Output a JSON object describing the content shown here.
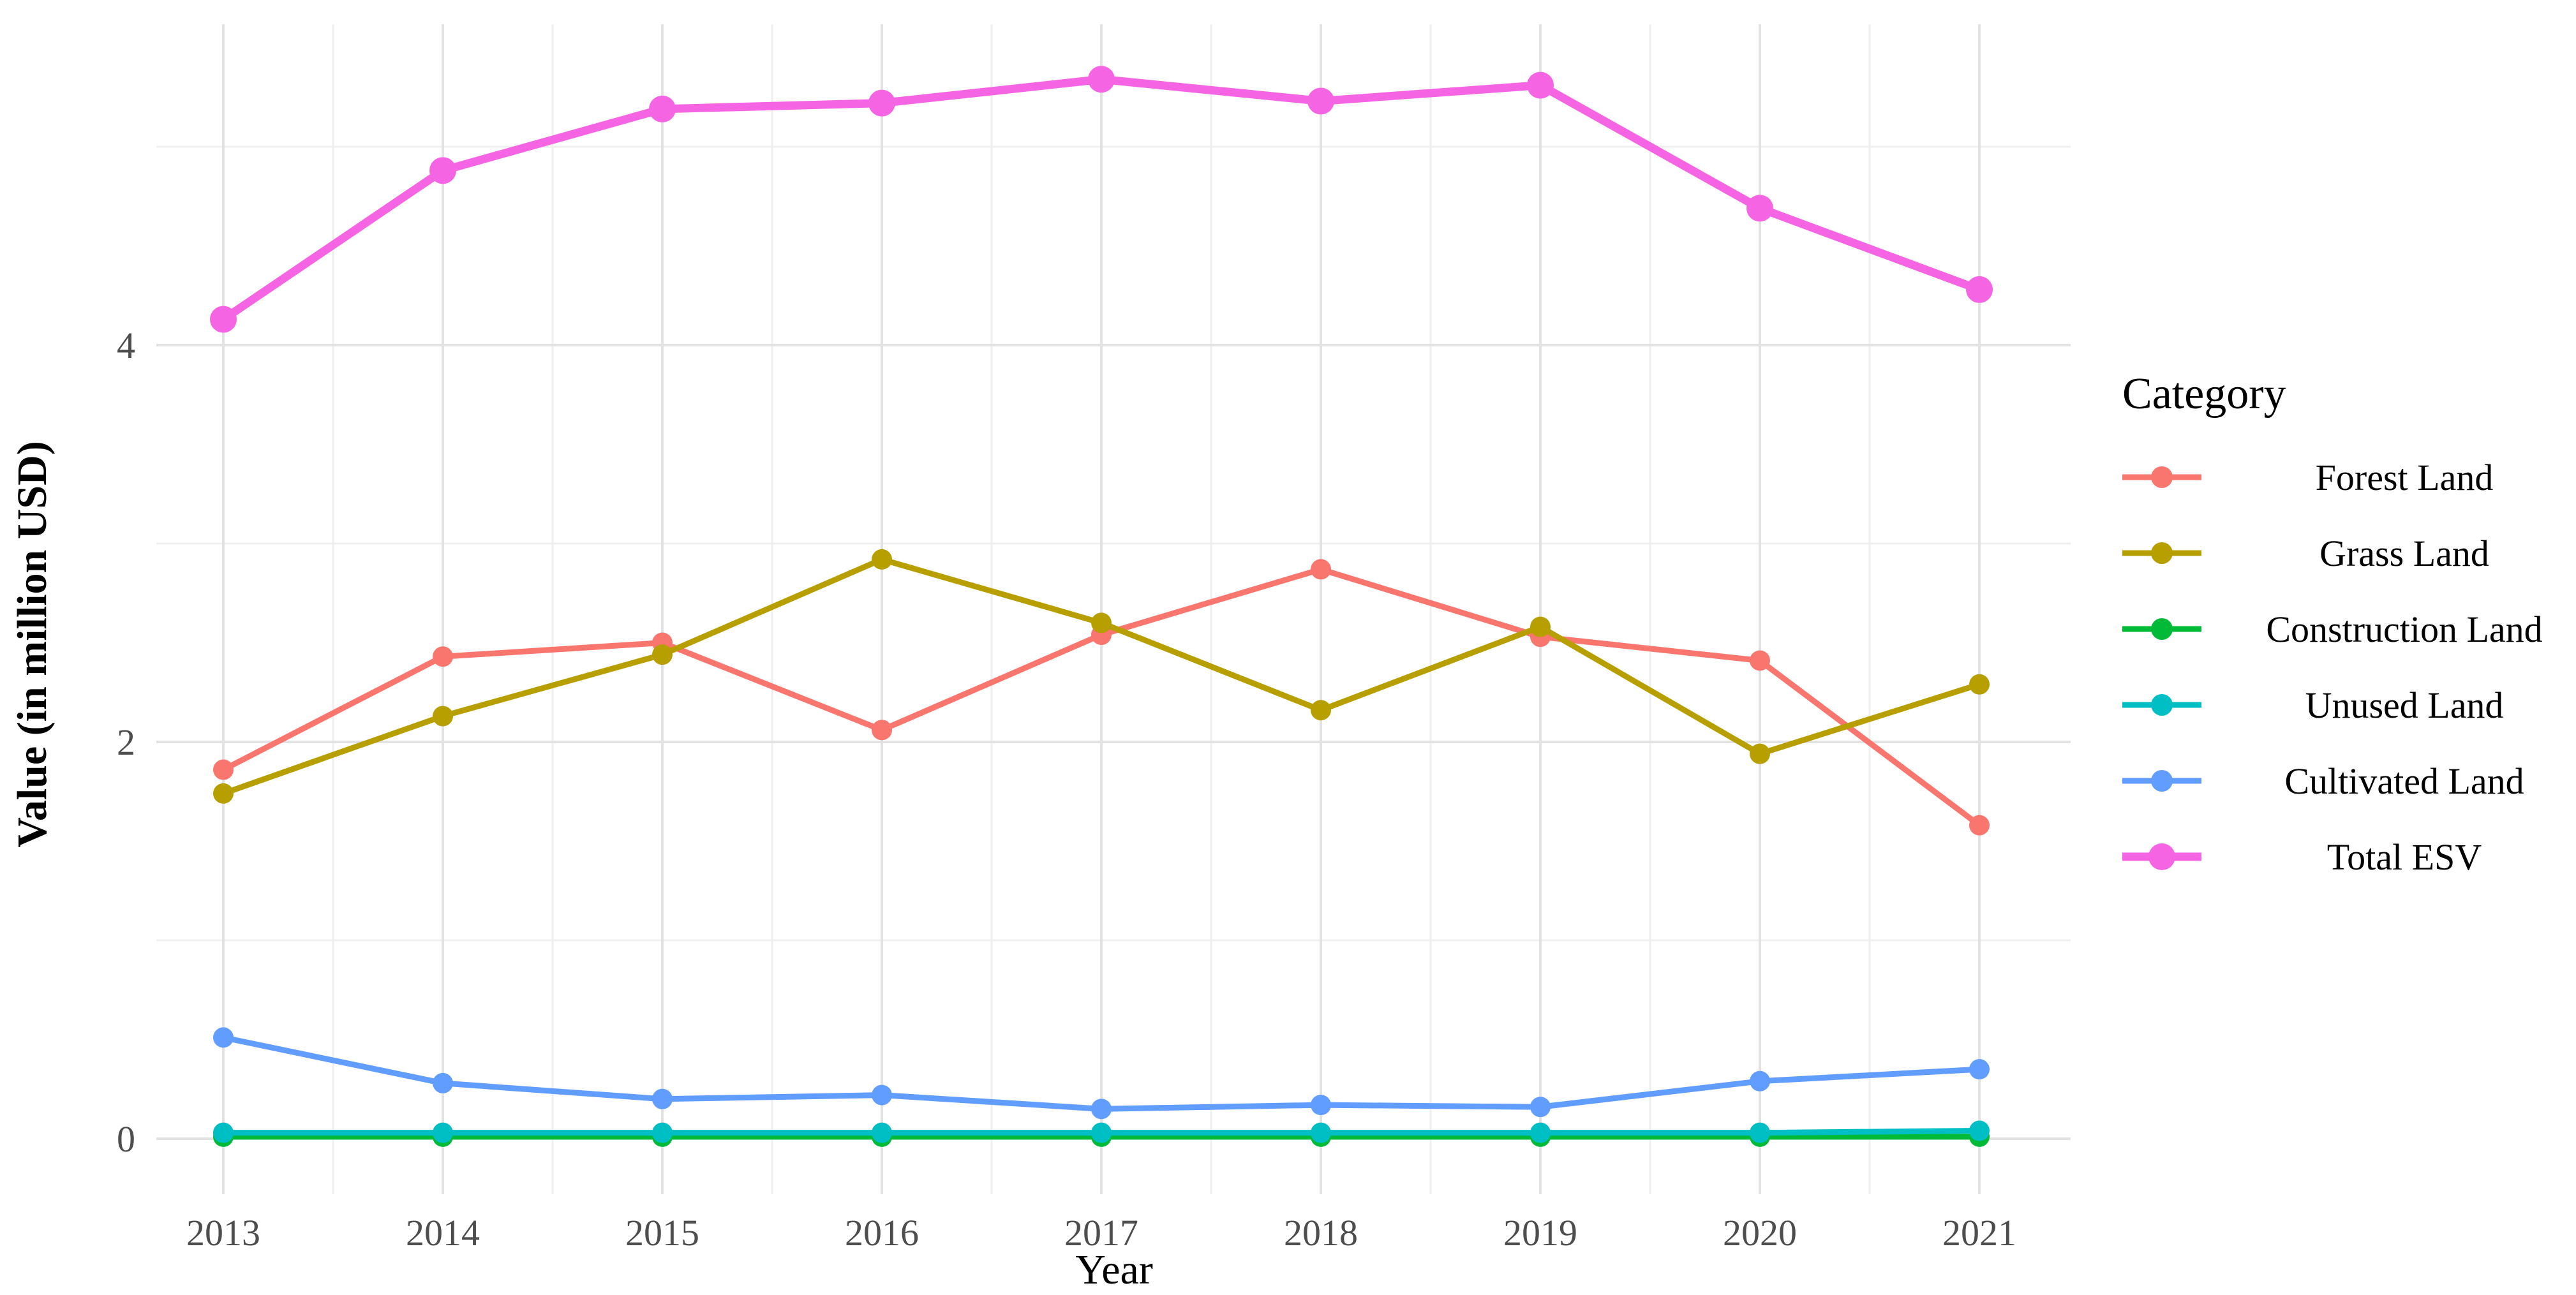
{
  "figure": {
    "background": "#ffffff",
    "panel": {
      "grid_major_color": "#E2E2E2",
      "grid_minor_color": "#EFEFEF"
    }
  },
  "axes": {
    "tick_label_color": "#4D4D4D",
    "title_color": "#000000"
  },
  "chart_data": {
    "type": "line",
    "title": "",
    "xlabel": "Year",
    "ylabel": "Value (in million USD)",
    "x": [
      2013,
      2014,
      2015,
      2016,
      2017,
      2018,
      2019,
      2020,
      2021
    ],
    "yticks_major": [
      0,
      2,
      4
    ],
    "yticks_minor": [
      1,
      3,
      5
    ],
    "ylim": [
      -0.28,
      5.62
    ],
    "grid": "on",
    "legend_position": "right",
    "legend_title": "Category",
    "series": [
      {
        "name": "Forest Land",
        "color": "#F8766D",
        "values": [
          1.86,
          2.43,
          2.5,
          2.06,
          2.54,
          2.87,
          2.53,
          2.41,
          1.58
        ]
      },
      {
        "name": "Grass Land",
        "color": "#B79F00",
        "values": [
          1.74,
          2.13,
          2.44,
          2.92,
          2.6,
          2.16,
          2.58,
          1.94,
          2.29
        ]
      },
      {
        "name": "Construction Land",
        "color": "#00BA38",
        "values": [
          0.01,
          0.01,
          0.01,
          0.01,
          0.01,
          0.01,
          0.01,
          0.01,
          0.01
        ]
      },
      {
        "name": "Unused Land",
        "color": "#00BFC4",
        "values": [
          0.03,
          0.03,
          0.03,
          0.03,
          0.03,
          0.03,
          0.03,
          0.03,
          0.04
        ]
      },
      {
        "name": "Cultivated Land",
        "color": "#619CFF",
        "values": [
          0.51,
          0.28,
          0.2,
          0.22,
          0.15,
          0.17,
          0.16,
          0.29,
          0.35
        ]
      },
      {
        "name": "Total ESV",
        "color": "#F564E3",
        "values": [
          4.13,
          4.88,
          5.19,
          5.22,
          5.34,
          5.23,
          5.31,
          4.69,
          4.28
        ]
      }
    ]
  }
}
